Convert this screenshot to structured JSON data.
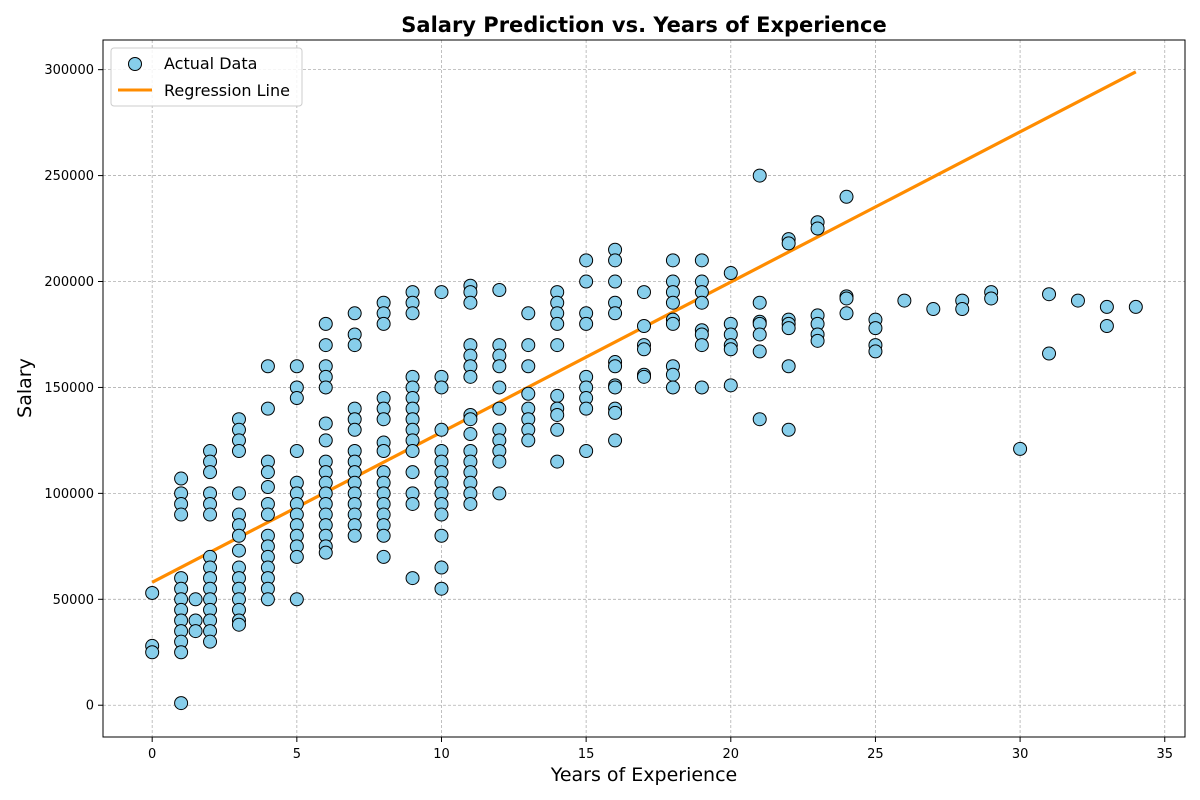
{
  "chart_data": {
    "type": "scatter",
    "title": "Salary Prediction vs. Years of Experience",
    "xlabel": "Years of Experience",
    "ylabel": "Salary",
    "xlim": [
      -1.7,
      35.7
    ],
    "ylim": [
      -15000,
      314000
    ],
    "xticks": [
      0,
      5,
      10,
      15,
      20,
      25,
      30,
      35
    ],
    "yticks": [
      0,
      50000,
      100000,
      150000,
      200000,
      250000,
      300000
    ],
    "grid": true,
    "legend_position": "top-left",
    "colors": {
      "points_fill": "#87ceeb",
      "points_edge": "#000000",
      "line": "#ff8c00",
      "grid": "#b0b0b0"
    },
    "series": [
      {
        "name": "Actual Data",
        "kind": "scatter",
        "points": [
          [
            0,
            53000
          ],
          [
            0,
            28000
          ],
          [
            0,
            25000
          ],
          [
            1,
            107000
          ],
          [
            1,
            100000
          ],
          [
            1,
            95000
          ],
          [
            1,
            90000
          ],
          [
            1,
            60000
          ],
          [
            1,
            55000
          ],
          [
            1,
            50000
          ],
          [
            1,
            45000
          ],
          [
            1,
            40000
          ],
          [
            1,
            35000
          ],
          [
            1,
            30000
          ],
          [
            1,
            25000
          ],
          [
            1,
            1000
          ],
          [
            1.5,
            50000
          ],
          [
            1.5,
            40000
          ],
          [
            1.5,
            35000
          ],
          [
            2,
            120000
          ],
          [
            2,
            115000
          ],
          [
            2,
            110000
          ],
          [
            2,
            100000
          ],
          [
            2,
            95000
          ],
          [
            2,
            90000
          ],
          [
            2,
            70000
          ],
          [
            2,
            65000
          ],
          [
            2,
            60000
          ],
          [
            2,
            55000
          ],
          [
            2,
            50000
          ],
          [
            2,
            45000
          ],
          [
            2,
            40000
          ],
          [
            2,
            35000
          ],
          [
            2,
            30000
          ],
          [
            3,
            135000
          ],
          [
            3,
            130000
          ],
          [
            3,
            125000
          ],
          [
            3,
            120000
          ],
          [
            3,
            100000
          ],
          [
            3,
            90000
          ],
          [
            3,
            85000
          ],
          [
            3,
            80000
          ],
          [
            3,
            73000
          ],
          [
            3,
            65000
          ],
          [
            3,
            60000
          ],
          [
            3,
            55000
          ],
          [
            3,
            50000
          ],
          [
            3,
            45000
          ],
          [
            3,
            40000
          ],
          [
            3,
            38000
          ],
          [
            4,
            160000
          ],
          [
            4,
            140000
          ],
          [
            4,
            115000
          ],
          [
            4,
            110000
          ],
          [
            4,
            103000
          ],
          [
            4,
            95000
          ],
          [
            4,
            90000
          ],
          [
            4,
            80000
          ],
          [
            4,
            75000
          ],
          [
            4,
            70000
          ],
          [
            4,
            65000
          ],
          [
            4,
            60000
          ],
          [
            4,
            55000
          ],
          [
            4,
            50000
          ],
          [
            5,
            160000
          ],
          [
            5,
            150000
          ],
          [
            5,
            145000
          ],
          [
            5,
            120000
          ],
          [
            5,
            105000
          ],
          [
            5,
            100000
          ],
          [
            5,
            95000
          ],
          [
            5,
            90000
          ],
          [
            5,
            85000
          ],
          [
            5,
            80000
          ],
          [
            5,
            75000
          ],
          [
            5,
            70000
          ],
          [
            5,
            50000
          ],
          [
            6,
            180000
          ],
          [
            6,
            170000
          ],
          [
            6,
            160000
          ],
          [
            6,
            155000
          ],
          [
            6,
            150000
          ],
          [
            6,
            133000
          ],
          [
            6,
            125000
          ],
          [
            6,
            115000
          ],
          [
            6,
            110000
          ],
          [
            6,
            105000
          ],
          [
            6,
            100000
          ],
          [
            6,
            95000
          ],
          [
            6,
            90000
          ],
          [
            6,
            85000
          ],
          [
            6,
            80000
          ],
          [
            6,
            75000
          ],
          [
            6,
            72000
          ],
          [
            7,
            185000
          ],
          [
            7,
            175000
          ],
          [
            7,
            170000
          ],
          [
            7,
            140000
          ],
          [
            7,
            135000
          ],
          [
            7,
            130000
          ],
          [
            7,
            120000
          ],
          [
            7,
            115000
          ],
          [
            7,
            110000
          ],
          [
            7,
            105000
          ],
          [
            7,
            100000
          ],
          [
            7,
            95000
          ],
          [
            7,
            90000
          ],
          [
            7,
            85000
          ],
          [
            7,
            80000
          ],
          [
            8,
            190000
          ],
          [
            8,
            185000
          ],
          [
            8,
            180000
          ],
          [
            8,
            145000
          ],
          [
            8,
            140000
          ],
          [
            8,
            135000
          ],
          [
            8,
            124000
          ],
          [
            8,
            120000
          ],
          [
            8,
            110000
          ],
          [
            8,
            105000
          ],
          [
            8,
            100000
          ],
          [
            8,
            95000
          ],
          [
            8,
            90000
          ],
          [
            8,
            85000
          ],
          [
            8,
            80000
          ],
          [
            8,
            70000
          ],
          [
            9,
            195000
          ],
          [
            9,
            190000
          ],
          [
            9,
            185000
          ],
          [
            9,
            155000
          ],
          [
            9,
            150000
          ],
          [
            9,
            145000
          ],
          [
            9,
            140000
          ],
          [
            9,
            135000
          ],
          [
            9,
            130000
          ],
          [
            9,
            125000
          ],
          [
            9,
            120000
          ],
          [
            9,
            110000
          ],
          [
            9,
            100000
          ],
          [
            9,
            95000
          ],
          [
            9,
            60000
          ],
          [
            10,
            195000
          ],
          [
            10,
            155000
          ],
          [
            10,
            150000
          ],
          [
            10,
            130000
          ],
          [
            10,
            120000
          ],
          [
            10,
            115000
          ],
          [
            10,
            110000
          ],
          [
            10,
            105000
          ],
          [
            10,
            100000
          ],
          [
            10,
            95000
          ],
          [
            10,
            90000
          ],
          [
            10,
            80000
          ],
          [
            10,
            65000
          ],
          [
            10,
            55000
          ],
          [
            11,
            198000
          ],
          [
            11,
            195000
          ],
          [
            11,
            190000
          ],
          [
            11,
            170000
          ],
          [
            11,
            165000
          ],
          [
            11,
            160000
          ],
          [
            11,
            155000
          ],
          [
            11,
            137000
          ],
          [
            11,
            135000
          ],
          [
            11,
            128000
          ],
          [
            11,
            120000
          ],
          [
            11,
            115000
          ],
          [
            11,
            110000
          ],
          [
            11,
            105000
          ],
          [
            11,
            100000
          ],
          [
            11,
            95000
          ],
          [
            12,
            196000
          ],
          [
            12,
            170000
          ],
          [
            12,
            165000
          ],
          [
            12,
            160000
          ],
          [
            12,
            150000
          ],
          [
            12,
            140000
          ],
          [
            12,
            130000
          ],
          [
            12,
            125000
          ],
          [
            12,
            120000
          ],
          [
            12,
            115000
          ],
          [
            12,
            100000
          ],
          [
            13,
            185000
          ],
          [
            13,
            170000
          ],
          [
            13,
            160000
          ],
          [
            13,
            147000
          ],
          [
            13,
            140000
          ],
          [
            13,
            135000
          ],
          [
            13,
            130000
          ],
          [
            13,
            125000
          ],
          [
            14,
            195000
          ],
          [
            14,
            190000
          ],
          [
            14,
            185000
          ],
          [
            14,
            180000
          ],
          [
            14,
            170000
          ],
          [
            14,
            146000
          ],
          [
            14,
            140000
          ],
          [
            14,
            137000
          ],
          [
            14,
            130000
          ],
          [
            14,
            115000
          ],
          [
            15,
            210000
          ],
          [
            15,
            200000
          ],
          [
            15,
            185000
          ],
          [
            15,
            180000
          ],
          [
            15,
            155000
          ],
          [
            15,
            150000
          ],
          [
            15,
            145000
          ],
          [
            15,
            140000
          ],
          [
            15,
            120000
          ],
          [
            16,
            215000
          ],
          [
            16,
            210000
          ],
          [
            16,
            200000
          ],
          [
            16,
            190000
          ],
          [
            16,
            185000
          ],
          [
            16,
            162000
          ],
          [
            16,
            160000
          ],
          [
            16,
            151000
          ],
          [
            16,
            150000
          ],
          [
            16,
            140000
          ],
          [
            16,
            138000
          ],
          [
            16,
            125000
          ],
          [
            17,
            195000
          ],
          [
            17,
            179000
          ],
          [
            17,
            170000
          ],
          [
            17,
            168000
          ],
          [
            17,
            156000
          ],
          [
            17,
            155000
          ],
          [
            18,
            210000
          ],
          [
            18,
            200000
          ],
          [
            18,
            195000
          ],
          [
            18,
            190000
          ],
          [
            18,
            182000
          ],
          [
            18,
            180000
          ],
          [
            18,
            160000
          ],
          [
            18,
            156000
          ],
          [
            18,
            150000
          ],
          [
            19,
            210000
          ],
          [
            19,
            200000
          ],
          [
            19,
            195000
          ],
          [
            19,
            190000
          ],
          [
            19,
            177000
          ],
          [
            19,
            175000
          ],
          [
            19,
            170000
          ],
          [
            19,
            150000
          ],
          [
            20,
            204000
          ],
          [
            20,
            180000
          ],
          [
            20,
            175000
          ],
          [
            20,
            170000
          ],
          [
            20,
            168000
          ],
          [
            20,
            151000
          ],
          [
            21,
            250000
          ],
          [
            21,
            190000
          ],
          [
            21,
            181000
          ],
          [
            21,
            180000
          ],
          [
            21,
            175000
          ],
          [
            21,
            167000
          ],
          [
            21,
            135000
          ],
          [
            22,
            220000
          ],
          [
            22,
            218000
          ],
          [
            22,
            182000
          ],
          [
            22,
            180000
          ],
          [
            22,
            178000
          ],
          [
            22,
            160000
          ],
          [
            22,
            130000
          ],
          [
            23,
            228000
          ],
          [
            23,
            225000
          ],
          [
            23,
            184000
          ],
          [
            23,
            180000
          ],
          [
            23,
            175000
          ],
          [
            23,
            172000
          ],
          [
            24,
            240000
          ],
          [
            24,
            193000
          ],
          [
            24,
            192000
          ],
          [
            24,
            185000
          ],
          [
            25,
            182000
          ],
          [
            25,
            178000
          ],
          [
            25,
            170000
          ],
          [
            25,
            167000
          ],
          [
            26,
            191000
          ],
          [
            27,
            187000
          ],
          [
            28,
            191000
          ],
          [
            28,
            187000
          ],
          [
            29,
            195000
          ],
          [
            29,
            192000
          ],
          [
            30,
            121000
          ],
          [
            31,
            194000
          ],
          [
            31,
            166000
          ],
          [
            32,
            191000
          ],
          [
            33,
            188000
          ],
          [
            33,
            179000
          ],
          [
            34,
            188000
          ]
        ]
      },
      {
        "name": "Regression Line",
        "kind": "line",
        "points": [
          [
            0,
            58000
          ],
          [
            34,
            299000
          ]
        ]
      }
    ]
  }
}
